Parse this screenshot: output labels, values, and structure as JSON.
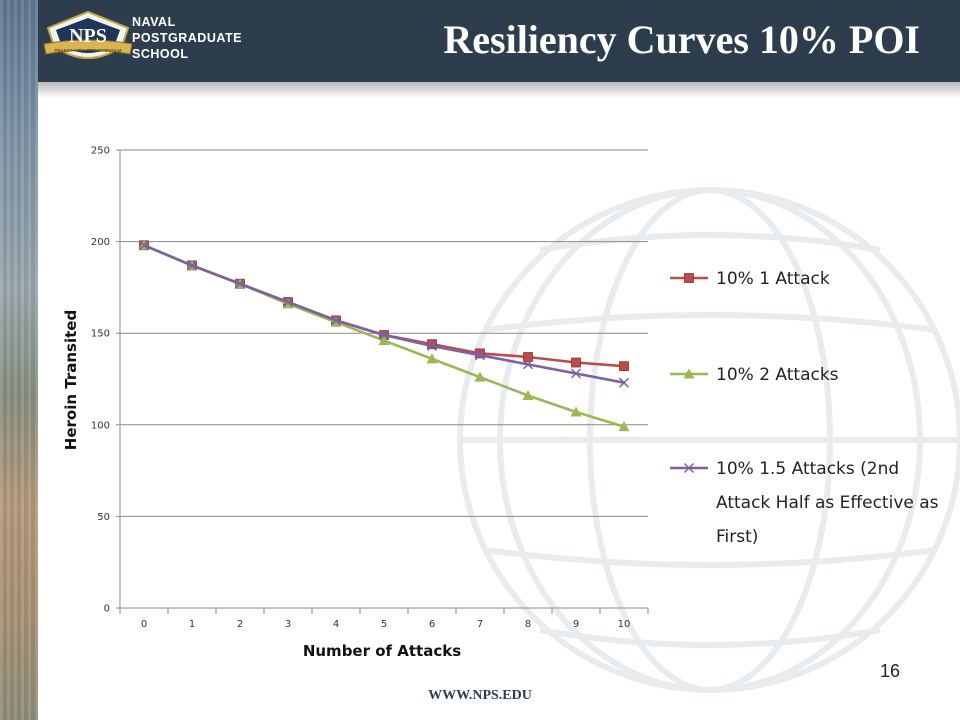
{
  "header": {
    "school_lines": [
      "NAVAL",
      "POSTGRADUATE",
      "SCHOOL"
    ],
    "logo_text": "NPS",
    "logo_motto": "PRAESTANTIA PER SCIENTIAM",
    "title": "Resiliency Curves 10% POI"
  },
  "footer": {
    "url": "WWW.NPS.EDU",
    "page_number": "16"
  },
  "colors": {
    "header_bg": "#2d3d4d",
    "series_1": "#be4b48",
    "series_2": "#98b954",
    "series_3": "#7d60a0"
  },
  "chart_data": {
    "type": "line",
    "title": "",
    "xlabel": "Number of Attacks",
    "ylabel": "Heroin Transited",
    "categories": [
      "0",
      "1",
      "2",
      "3",
      "4",
      "5",
      "6",
      "7",
      "8",
      "9",
      "10"
    ],
    "ylim": [
      0,
      250
    ],
    "yticks": [
      0,
      50,
      100,
      150,
      200,
      250
    ],
    "grid": true,
    "legend_position": "right",
    "series": [
      {
        "name": "10% 1 Attack",
        "marker": "square",
        "color": "#be4b48",
        "values": [
          198,
          187,
          177,
          167,
          157,
          149,
          144,
          139,
          137,
          134,
          132
        ]
      },
      {
        "name": "10% 2 Attacks",
        "marker": "triangle",
        "color": "#98b954",
        "values": [
          198,
          187,
          177,
          166,
          156,
          146,
          136,
          126,
          116,
          107,
          99
        ]
      },
      {
        "name": "10% 1.5 Attacks (2nd Attack Half as Effective as First)",
        "marker": "x",
        "color": "#7d60a0",
        "values": [
          198,
          187,
          177,
          167,
          157,
          149,
          143,
          138,
          133,
          128,
          123
        ]
      }
    ]
  }
}
